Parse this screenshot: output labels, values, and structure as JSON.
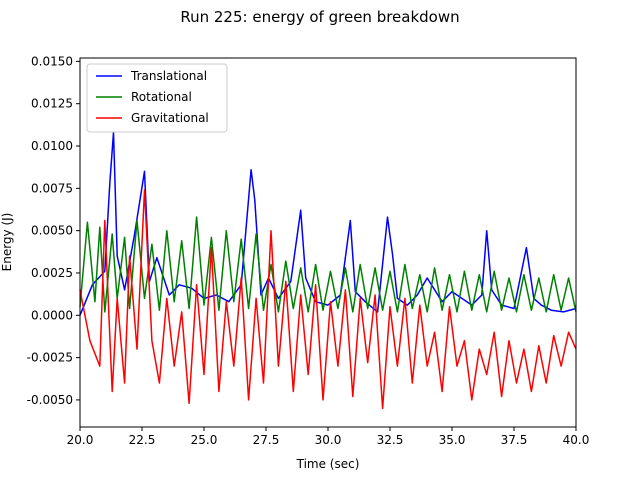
{
  "chart_data": {
    "type": "line",
    "title": "Run 225: energy of green breakdown",
    "xlabel": "Time (sec)",
    "ylabel": "Energy (J)",
    "xlim": [
      20.0,
      40.0
    ],
    "ylim": [
      -0.0066,
      0.0152
    ],
    "x_ticks": [
      "20.0",
      "22.5",
      "25.0",
      "27.5",
      "30.0",
      "32.5",
      "35.0",
      "37.5",
      "40.0"
    ],
    "y_ticks": [
      "-0.0050",
      "-0.0025",
      "0.0000",
      "0.0025",
      "0.0050",
      "0.0075",
      "0.0100",
      "0.0125",
      "0.0150"
    ],
    "grid": false,
    "legend_position": "upper-left",
    "series": [
      {
        "name": "Translational",
        "color": "#0000ff",
        "x": [
          20.0,
          20.5,
          21.0,
          21.2,
          21.35,
          21.5,
          21.8,
          22.2,
          22.6,
          22.8,
          23.1,
          23.6,
          24.0,
          24.5,
          25.0,
          25.5,
          26.0,
          26.5,
          26.9,
          27.05,
          27.3,
          27.6,
          28.0,
          28.5,
          28.9,
          29.1,
          29.5,
          30.0,
          30.5,
          30.9,
          31.1,
          31.5,
          32.0,
          32.4,
          32.6,
          32.8,
          33.2,
          33.6,
          34.0,
          34.6,
          35.0,
          35.4,
          35.8,
          36.2,
          36.4,
          36.6,
          37.0,
          37.5,
          38.0,
          38.3,
          38.6,
          39.0,
          39.5,
          40.0
        ],
        "values": [
          0.0,
          0.0018,
          0.0026,
          0.0078,
          0.0108,
          0.0035,
          0.0015,
          0.0048,
          0.0085,
          0.002,
          0.0034,
          0.0012,
          0.0018,
          0.0016,
          0.001,
          0.0012,
          0.0008,
          0.0018,
          0.0086,
          0.0068,
          0.0012,
          0.0022,
          0.001,
          0.002,
          0.0062,
          0.0022,
          0.0008,
          0.0006,
          0.0012,
          0.0056,
          0.0014,
          0.0008,
          0.0002,
          0.0058,
          0.0036,
          0.001,
          0.0006,
          0.0012,
          0.0022,
          0.0008,
          0.0014,
          0.001,
          0.0006,
          0.0012,
          0.005,
          0.0015,
          0.0006,
          0.0004,
          0.004,
          0.001,
          0.0006,
          0.0003,
          0.0002,
          0.0004
        ]
      },
      {
        "name": "Rotational",
        "color": "#008000",
        "x": [
          20.0,
          20.3,
          20.6,
          20.8,
          21.0,
          21.3,
          21.5,
          21.8,
          22.0,
          22.3,
          22.6,
          22.9,
          23.2,
          23.5,
          23.8,
          24.1,
          24.4,
          24.7,
          25.0,
          25.3,
          25.6,
          25.9,
          26.2,
          26.5,
          26.8,
          27.1,
          27.4,
          27.7,
          28.0,
          28.3,
          28.6,
          28.9,
          29.2,
          29.5,
          29.8,
          30.1,
          30.4,
          30.7,
          31.0,
          31.3,
          31.6,
          31.9,
          32.2,
          32.5,
          32.8,
          33.1,
          33.4,
          33.7,
          34.0,
          34.3,
          34.6,
          34.9,
          35.2,
          35.5,
          35.8,
          36.1,
          36.4,
          36.7,
          37.0,
          37.3,
          37.6,
          37.9,
          38.2,
          38.5,
          38.8,
          39.1,
          39.4,
          39.7,
          40.0
        ],
        "values": [
          0.0005,
          0.0055,
          0.0008,
          0.0052,
          0.0002,
          0.0048,
          0.001,
          0.0046,
          0.0004,
          0.0056,
          0.001,
          0.0042,
          0.0003,
          0.005,
          0.0008,
          0.0044,
          0.0004,
          0.0058,
          0.0006,
          0.0046,
          0.0003,
          0.005,
          0.0008,
          0.0045,
          0.0004,
          0.0048,
          0.0003,
          0.003,
          0.0002,
          0.0032,
          0.0004,
          0.0028,
          0.0002,
          0.003,
          0.0003,
          0.0026,
          0.0004,
          0.0028,
          0.0002,
          0.003,
          0.0004,
          0.0028,
          0.0003,
          0.0026,
          0.0002,
          0.003,
          0.0004,
          0.0024,
          0.0002,
          0.0028,
          0.0003,
          0.0024,
          0.0002,
          0.0026,
          0.0003,
          0.0024,
          0.0002,
          0.0026,
          0.0003,
          0.0022,
          0.0002,
          0.0024,
          0.0003,
          0.0022,
          0.0002,
          0.0024,
          0.0003,
          0.0022,
          0.0002
        ]
      },
      {
        "name": "Gravitational",
        "color": "#ff0000",
        "x": [
          20.0,
          20.4,
          20.8,
          21.0,
          21.3,
          21.5,
          21.8,
          22.0,
          22.3,
          22.6,
          22.9,
          23.2,
          23.5,
          23.8,
          24.1,
          24.4,
          24.7,
          25.0,
          25.3,
          25.6,
          25.9,
          26.2,
          26.5,
          26.8,
          27.1,
          27.4,
          27.7,
          28.0,
          28.3,
          28.6,
          28.9,
          29.2,
          29.5,
          29.8,
          30.1,
          30.4,
          30.7,
          31.0,
          31.3,
          31.6,
          31.9,
          32.2,
          32.5,
          32.8,
          33.1,
          33.4,
          33.7,
          34.0,
          34.3,
          34.6,
          34.9,
          35.2,
          35.5,
          35.8,
          36.1,
          36.4,
          36.7,
          37.0,
          37.3,
          37.6,
          37.9,
          38.2,
          38.5,
          38.8,
          39.1,
          39.4,
          39.7,
          40.0
        ],
        "values": [
          0.0015,
          -0.0015,
          -0.003,
          0.0056,
          -0.0045,
          0.001,
          -0.004,
          0.0035,
          -0.002,
          0.0074,
          -0.0015,
          -0.004,
          0.001,
          -0.003,
          0.0002,
          -0.0052,
          0.0018,
          -0.0035,
          0.004,
          -0.0045,
          0.0008,
          -0.003,
          0.0022,
          -0.005,
          0.001,
          -0.004,
          0.005,
          -0.003,
          0.002,
          -0.0045,
          0.0012,
          -0.0035,
          0.0018,
          -0.005,
          0.0008,
          -0.003,
          0.0015,
          -0.0048,
          0.001,
          -0.0028,
          0.0012,
          -0.0055,
          0.0005,
          -0.003,
          0.001,
          -0.004,
          0.0006,
          -0.003,
          -0.001,
          -0.0045,
          0.0005,
          -0.003,
          -0.0015,
          -0.005,
          -0.002,
          -0.0035,
          -0.001,
          -0.0048,
          -0.0015,
          -0.004,
          -0.002,
          -0.0045,
          -0.0018,
          -0.004,
          -0.0012,
          -0.003,
          -0.001,
          -0.002
        ]
      }
    ]
  }
}
